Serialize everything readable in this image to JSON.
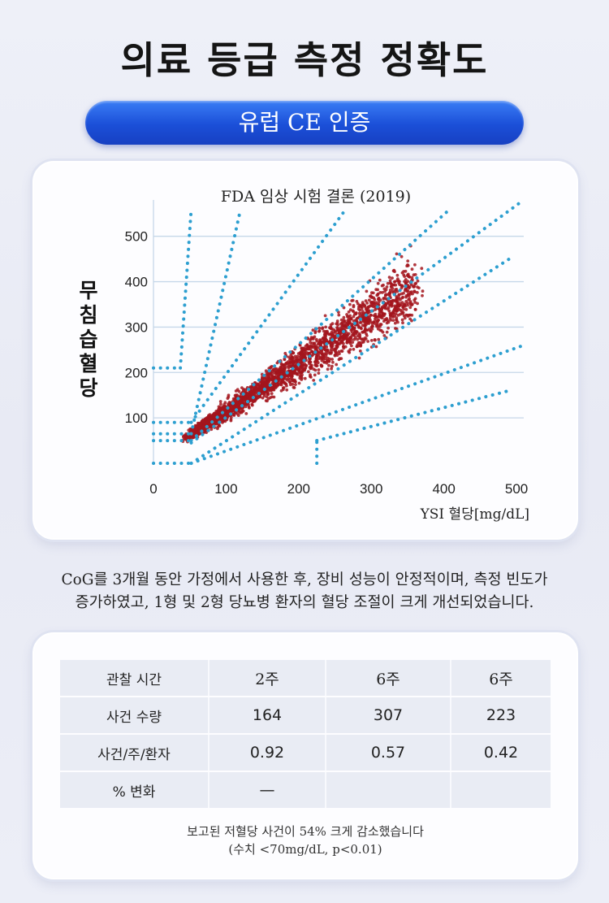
{
  "header": {
    "title": "의료 등급 측정 정확도",
    "badge": "유럽 CE 인증"
  },
  "chart_data": {
    "type": "scatter",
    "title": "FDA 임상 시험 결론 (2019)",
    "xlabel": "YSI 혈당[mg/dL]",
    "ylabel": "무침습혈당",
    "xlim": [
      0,
      510
    ],
    "ylim": [
      0,
      580
    ],
    "x_ticks": [
      "0",
      "100",
      "200",
      "300",
      "400",
      "500"
    ],
    "y_ticks": [
      "100",
      "200",
      "300",
      "400",
      "500"
    ],
    "grid": "horizontal",
    "point_color": "#a3151d",
    "zone_line_color": "#2d9fd0",
    "zone_lines": [
      {
        "x": [
          0,
          52
        ],
        "y": [
          0,
          0
        ]
      },
      {
        "x": [
          0,
          52
        ],
        "y": [
          50,
          50
        ]
      },
      {
        "x": [
          0,
          52
        ],
        "y": [
          65,
          65
        ]
      },
      {
        "x": [
          0,
          52
        ],
        "y": [
          90,
          90
        ]
      },
      {
        "x": [
          0,
          37
        ],
        "y": [
          210,
          210
        ]
      },
      {
        "x": [
          37,
          52
        ],
        "y": [
          210,
          560
        ]
      },
      {
        "x": [
          52,
          120
        ],
        "y": [
          65,
          560
        ]
      },
      {
        "x": [
          52,
          265
        ],
        "y": [
          90,
          560
        ]
      },
      {
        "x": [
          52,
          405
        ],
        "y": [
          50,
          555
        ]
      },
      {
        "x": [
          52,
          510
        ],
        "y": [
          45,
          580
        ]
      },
      {
        "x": [
          52,
          490
        ],
        "y": [
          0,
          450
        ]
      },
      {
        "x": [
          52,
          510
        ],
        "y": [
          0,
          260
        ]
      },
      {
        "x": [
          225,
          490
        ],
        "y": [
          50,
          160
        ]
      },
      {
        "x": [
          225,
          225
        ],
        "y": [
          0,
          50
        ]
      }
    ],
    "point_cloud": {
      "count": 2600,
      "x_range": [
        50,
        360
      ],
      "trend": {
        "slope": 1.05,
        "intercept": 10
      },
      "spread_sd_fraction": 0.14,
      "note": "dense scatter of paired readings clustered along the identity line"
    }
  },
  "description": {
    "line1": "CoG를 3개월 동안 가정에서 사용한 후, 장비 성능이 안정적이며, 측정 빈도가",
    "line2": "증가하였고, 1형 및 2형 당뇨병 환자의 혈당 조절이 크게 개선되었습니다."
  },
  "table": {
    "header": {
      "label": "관찰 시간",
      "c1": "2주",
      "c2": "6주",
      "c3": "6주"
    },
    "rows": [
      {
        "label": "사건 수량",
        "c1": "164",
        "c2": "307",
        "c3": "223"
      },
      {
        "label": "사건/주/환자",
        "c1": "0.92",
        "c2": "0.57",
        "c3": "0.42"
      },
      {
        "label": "% 변화",
        "c1": "—",
        "c2": "",
        "c3": ""
      }
    ]
  },
  "footnote": {
    "line1": "보고된 저혈당 사건이 54% 크게 감소했습니다",
    "line2": "(수치 <70mg/dL, p<0.01)"
  }
}
